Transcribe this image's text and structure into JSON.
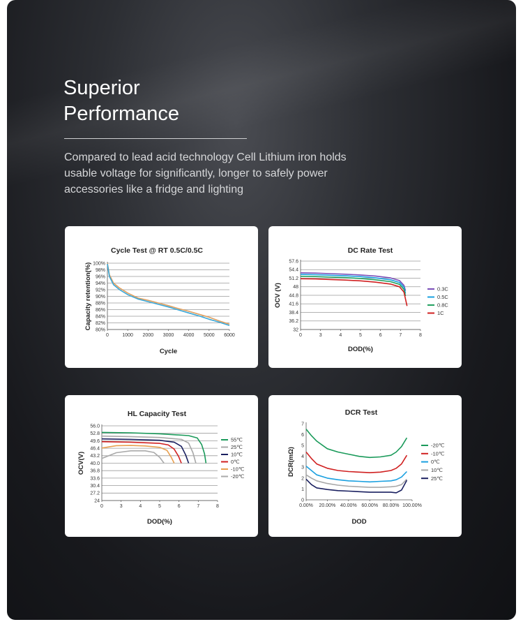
{
  "header": {
    "title_line1": "Superior",
    "title_line2": "Performance",
    "description": "Compared to lead acid technology Cell Lithium iron holds usable voltage for significantly, longer to safely power accessories like a fridge and lighting"
  },
  "chart_data": [
    {
      "type": "line",
      "title": "Cycle Test @ RT 0.5C/0.5C",
      "xlabel": "Cycle",
      "ylabel": "Capacity retention(%)",
      "xlim": [
        0,
        6000
      ],
      "ylim": [
        80,
        100
      ],
      "x_ticks": [
        "0",
        "1000",
        "2000",
        "3000",
        "4000",
        "5000",
        "6000"
      ],
      "y_ticks": [
        "80%",
        "82%",
        "84%",
        "86%",
        "88%",
        "90%",
        "92%",
        "94%",
        "96%",
        "98%",
        "100%"
      ],
      "grid": true,
      "series": [
        {
          "color": "#e0a060",
          "x": [
            0,
            100,
            300,
            600,
            1000,
            1500,
            2000,
            2500,
            3000,
            3500,
            4000,
            4500,
            5000,
            5500,
            6000
          ],
          "values": [
            100,
            96.5,
            94,
            92.5,
            91,
            89.5,
            88.8,
            88,
            87.2,
            86.3,
            85.5,
            84.6,
            83.7,
            82.6,
            81.6
          ]
        },
        {
          "color": "#3aa7d8",
          "x": [
            0,
            100,
            300,
            600,
            1000,
            1500,
            2000,
            2500,
            3000,
            3500,
            4000,
            4500,
            5000,
            5500,
            6000
          ],
          "values": [
            99.8,
            96,
            93.5,
            92,
            90.5,
            89.2,
            88.4,
            87.6,
            86.8,
            85.9,
            85,
            84.1,
            83.1,
            82.2,
            81.2
          ]
        }
      ]
    },
    {
      "type": "line",
      "title": "DC Rate Test",
      "xlabel": "DOD(%)",
      "ylabel": "OCV (V)",
      "xlim": [
        0,
        8
      ],
      "ylim": [
        32,
        57.6
      ],
      "x_ticks": [
        "0",
        "3",
        "4",
        "5",
        "6",
        "7",
        "8"
      ],
      "y_ticks": [
        "32",
        "36.2",
        "38.4",
        "41.6",
        "44.8",
        "48",
        "51.2",
        "54.4",
        "57.6"
      ],
      "grid": true,
      "legend_position": "right",
      "series": [
        {
          "name": "0.3C",
          "color": "#7a4fb8",
          "x": [
            0,
            1,
            2,
            3,
            4,
            5,
            6,
            6.6,
            6.9,
            7.0
          ],
          "values": [
            53.2,
            53.1,
            52.9,
            52.7,
            52.4,
            52.0,
            51.3,
            50.3,
            48.5,
            46.5
          ]
        },
        {
          "name": "0.5C",
          "color": "#1aa0e0",
          "x": [
            0,
            1,
            2,
            3,
            4,
            5,
            6,
            6.6,
            6.9,
            7.0
          ],
          "values": [
            52.6,
            52.5,
            52.3,
            52.1,
            51.8,
            51.3,
            50.6,
            49.6,
            47.8,
            45.5
          ]
        },
        {
          "name": "0.8C",
          "color": "#22a060",
          "x": [
            0,
            1,
            2,
            3,
            4,
            5,
            6,
            6.6,
            6.9,
            7.0
          ],
          "values": [
            51.9,
            51.8,
            51.6,
            51.4,
            51.1,
            50.6,
            49.9,
            48.9,
            47.0,
            44.5
          ]
        },
        {
          "name": "1C",
          "color": "#d02020",
          "x": [
            0,
            1,
            2,
            3,
            4,
            5,
            6,
            6.6,
            6.9,
            7.1
          ],
          "values": [
            51.0,
            50.9,
            50.7,
            50.5,
            50.2,
            49.7,
            49.0,
            48.0,
            46.0,
            40.8
          ]
        }
      ],
      "dod_ticks_note": ""
    },
    {
      "type": "line",
      "title": "HL Capacity Test",
      "xlabel": "DOD(%)",
      "ylabel": "OCV(V)",
      "xlim": [
        0,
        8
      ],
      "ylim": [
        24,
        56
      ],
      "x_ticks": [
        "0",
        "3",
        "4",
        "5",
        "6",
        "7",
        "8"
      ],
      "y_ticks": [
        "24",
        "27.2",
        "30.4",
        "33.6",
        "36.8",
        "40.0",
        "43.2",
        "46.4",
        "49.6",
        "52.8",
        "56.0"
      ],
      "grid": true,
      "legend_position": "right",
      "series": [
        {
          "name": "55℃",
          "color": "#1a9a5a",
          "x": [
            0,
            2,
            4,
            6,
            6.6,
            6.9,
            7.1,
            7.2
          ],
          "values": [
            53.2,
            53.0,
            52.6,
            51.8,
            50.8,
            48.0,
            44.0,
            40.0
          ]
        },
        {
          "name": "25℃",
          "color": "#a8a8a8",
          "x": [
            0,
            2,
            4,
            5.5,
            6.0,
            6.3,
            6.5
          ],
          "values": [
            51.6,
            51.4,
            51.0,
            50.2,
            48.6,
            44.5,
            40.0
          ]
        },
        {
          "name": "10℃",
          "color": "#1a2060",
          "x": [
            0,
            2,
            4,
            5.0,
            5.5,
            5.8,
            6.0
          ],
          "values": [
            50.4,
            50.2,
            49.8,
            49.0,
            47.2,
            43.5,
            40.0
          ]
        },
        {
          "name": "0℃",
          "color": "#d02020",
          "x": [
            0,
            2,
            4,
            4.6,
            5.0,
            5.3,
            5.5
          ],
          "values": [
            49.2,
            49.0,
            48.5,
            47.8,
            46.0,
            43.0,
            40.0
          ]
        },
        {
          "name": "-10℃",
          "color": "#e8a050",
          "x": [
            0,
            1,
            2,
            3,
            4,
            4.5,
            4.8,
            5.0
          ],
          "values": [
            46.5,
            47.5,
            47.6,
            47.4,
            46.8,
            45.5,
            42.5,
            40.0
          ]
        },
        {
          "name": "-20℃",
          "color": "#aaaaaa",
          "x": [
            0,
            1,
            2,
            3,
            3.6,
            4.0,
            4.3
          ],
          "values": [
            42.0,
            44.5,
            45.3,
            45.3,
            44.6,
            42.5,
            40.0
          ]
        }
      ]
    },
    {
      "type": "line",
      "title": "DCR Test",
      "xlabel": "DOD",
      "ylabel": "DCR(mΩ)",
      "xlim": [
        0,
        100
      ],
      "ylim": [
        0,
        7
      ],
      "x_ticks": [
        "0.00%",
        "20.00%",
        "40.00%",
        "60.00%",
        "80.00%",
        "100.00%"
      ],
      "y_ticks": [
        "0",
        "1",
        "2",
        "3",
        "4",
        "5",
        "6",
        "7"
      ],
      "grid": false,
      "legend_position": "right",
      "series": [
        {
          "name": "-20℃",
          "color": "#1a9a5a",
          "x": [
            0,
            5,
            10,
            20,
            30,
            40,
            50,
            60,
            70,
            80,
            85,
            90,
            95
          ],
          "values": [
            6.5,
            5.9,
            5.4,
            4.7,
            4.4,
            4.2,
            4.0,
            3.9,
            3.95,
            4.1,
            4.4,
            4.9,
            5.7
          ]
        },
        {
          "name": "-10℃",
          "color": "#d02020",
          "x": [
            0,
            5,
            10,
            20,
            30,
            40,
            50,
            60,
            70,
            80,
            85,
            90,
            95
          ],
          "values": [
            4.4,
            3.8,
            3.3,
            2.9,
            2.7,
            2.6,
            2.55,
            2.5,
            2.55,
            2.7,
            2.9,
            3.3,
            4.1
          ]
        },
        {
          "name": "0℃",
          "color": "#1aa0e0",
          "x": [
            0,
            5,
            10,
            20,
            30,
            40,
            50,
            60,
            70,
            80,
            85,
            90,
            95
          ],
          "values": [
            3.1,
            2.7,
            2.3,
            2.0,
            1.85,
            1.75,
            1.7,
            1.65,
            1.7,
            1.75,
            1.85,
            2.1,
            2.6
          ]
        },
        {
          "name": "10℃",
          "color": "#a8a8a8",
          "x": [
            0,
            5,
            10,
            20,
            30,
            40,
            50,
            60,
            70,
            80,
            85,
            90,
            95
          ],
          "values": [
            2.3,
            2.0,
            1.75,
            1.5,
            1.35,
            1.25,
            1.2,
            1.15,
            1.15,
            1.2,
            1.25,
            1.4,
            1.9
          ]
        },
        {
          "name": "25℃",
          "color": "#1a2060",
          "x": [
            0,
            5,
            10,
            20,
            30,
            40,
            50,
            60,
            70,
            80,
            85,
            90,
            95
          ],
          "values": [
            1.9,
            1.4,
            1.1,
            0.95,
            0.85,
            0.8,
            0.75,
            0.7,
            0.7,
            0.7,
            0.65,
            0.9,
            1.8
          ]
        }
      ]
    }
  ]
}
